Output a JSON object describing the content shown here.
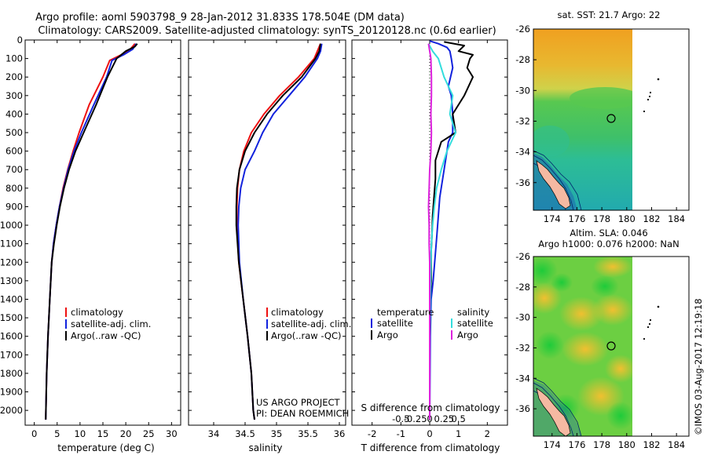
{
  "title": {
    "line1": "Argo profile: aoml 5903798_9 28-Jan-2012 31.833S 178.504E (DM data)",
    "line2": "Climatology: CARS2009. Satellite-adjusted climatology: synTS_20120128.nc (0.6d earlier)"
  },
  "credit": {
    "line1": "US ARGO PROJECT",
    "line2": "PI: DEAN ROEMMICH"
  },
  "stamp": "©IMOS 03-Aug-2017 12:19:18",
  "colors": {
    "climatology": "#ee1111",
    "satellite": "#1122dd",
    "argo": "#000000",
    "sal_satellite": "#33dddd",
    "sal_argo": "#dd22dd"
  },
  "legend_ts": [
    "climatology",
    "satellite-adj. clim.",
    "Argo(..raw -QC)"
  ],
  "legend_diff": {
    "temperature_head": "temperature",
    "salinity_head": "salinity",
    "t_items": [
      "satellite",
      "Argo"
    ],
    "s_items": [
      "satellite",
      "Argo"
    ]
  },
  "map_titles": {
    "sst": "sat. SST: 21.7 Argo: 22",
    "sla1": "Altim. SLA: 0.046",
    "sla2": "Argo h1000: 0.076 h2000: NaN"
  },
  "chart_data": [
    {
      "type": "line",
      "name": "temperature-profile",
      "xlabel": "temperature (deg C)",
      "xlim": [
        -2,
        32
      ],
      "ylim": [
        2080,
        0
      ],
      "xticks": [
        0,
        5,
        10,
        15,
        20,
        25,
        30
      ],
      "yticks": [
        0,
        100,
        200,
        300,
        400,
        500,
        600,
        700,
        800,
        900,
        1000,
        1100,
        1200,
        1300,
        1400,
        1500,
        1600,
        1700,
        1800,
        1900,
        2000
      ],
      "series": [
        {
          "name": "climatology",
          "color": "#ee1111",
          "points": [
            [
              22,
              20
            ],
            [
              21,
              50
            ],
            [
              19,
              80
            ],
            [
              16.5,
              110
            ],
            [
              15,
              200
            ],
            [
              12,
              350
            ],
            [
              9.8,
              500
            ],
            [
              8.5,
              600
            ],
            [
              7.3,
              700
            ],
            [
              6.3,
              800
            ],
            [
              5.5,
              900
            ],
            [
              4.8,
              1000
            ],
            [
              4.2,
              1100
            ],
            [
              3.8,
              1200
            ],
            [
              3.4,
              1400
            ],
            [
              3,
              1600
            ],
            [
              2.7,
              1800
            ],
            [
              2.5,
              2050
            ]
          ]
        },
        {
          "name": "satellite-adj. clim.",
          "color": "#1122dd",
          "points": [
            [
              22.3,
              20
            ],
            [
              21.5,
              50
            ],
            [
              19.5,
              80
            ],
            [
              17,
              110
            ],
            [
              15.8,
              200
            ],
            [
              13,
              350
            ],
            [
              10.3,
              500
            ],
            [
              8.7,
              600
            ],
            [
              7.4,
              700
            ],
            [
              6.4,
              800
            ],
            [
              5.5,
              900
            ],
            [
              4.8,
              1000
            ],
            [
              4.2,
              1100
            ],
            [
              3.8,
              1200
            ],
            [
              3.4,
              1400
            ],
            [
              3,
              1600
            ],
            [
              2.7,
              1800
            ],
            [
              2.5,
              2050
            ]
          ]
        },
        {
          "name": "Argo(..raw -QC)",
          "color": "#000000",
          "points": [
            [
              22.5,
              20
            ],
            [
              22,
              35
            ],
            [
              20,
              60
            ],
            [
              18,
              100
            ],
            [
              17,
              150
            ],
            [
              16,
              200
            ],
            [
              13.5,
              350
            ],
            [
              10.8,
              500
            ],
            [
              9,
              600
            ],
            [
              7.6,
              700
            ],
            [
              6.5,
              800
            ],
            [
              5.6,
              900
            ],
            [
              4.9,
              1000
            ],
            [
              4.3,
              1100
            ],
            [
              3.8,
              1200
            ],
            [
              3.4,
              1400
            ],
            [
              3,
              1600
            ],
            [
              2.7,
              1800
            ],
            [
              2.5,
              2050
            ]
          ]
        }
      ]
    },
    {
      "type": "line",
      "name": "salinity-profile",
      "xlabel": "salinity",
      "xlim": [
        33.6,
        36.1
      ],
      "ylim": [
        2080,
        0
      ],
      "xticks": [
        34,
        34.5,
        35,
        35.5,
        36
      ],
      "series": [
        {
          "name": "climatology",
          "color": "#ee1111",
          "points": [
            [
              35.7,
              20
            ],
            [
              35.65,
              60
            ],
            [
              35.6,
              100
            ],
            [
              35.35,
              200
            ],
            [
              35.05,
              300
            ],
            [
              34.8,
              400
            ],
            [
              34.6,
              500
            ],
            [
              34.48,
              600
            ],
            [
              34.41,
              700
            ],
            [
              34.38,
              800
            ],
            [
              34.37,
              900
            ],
            [
              34.37,
              1000
            ],
            [
              34.4,
              1200
            ],
            [
              34.47,
              1400
            ],
            [
              34.54,
              1600
            ],
            [
              34.6,
              1800
            ],
            [
              34.63,
              2000
            ],
            [
              34.65,
              2050
            ]
          ]
        },
        {
          "name": "satellite-adj. clim.",
          "color": "#1122dd",
          "points": [
            [
              35.72,
              20
            ],
            [
              35.7,
              60
            ],
            [
              35.65,
              100
            ],
            [
              35.45,
              200
            ],
            [
              35.2,
              300
            ],
            [
              34.95,
              400
            ],
            [
              34.78,
              500
            ],
            [
              34.65,
              600
            ],
            [
              34.5,
              700
            ],
            [
              34.43,
              800
            ],
            [
              34.4,
              900
            ],
            [
              34.39,
              1000
            ],
            [
              34.41,
              1200
            ],
            [
              34.47,
              1400
            ],
            [
              34.54,
              1600
            ],
            [
              34.6,
              1800
            ],
            [
              34.63,
              2000
            ],
            [
              34.65,
              2050
            ]
          ]
        },
        {
          "name": "Argo(..raw -QC)",
          "color": "#000000",
          "points": [
            [
              35.7,
              20
            ],
            [
              35.68,
              60
            ],
            [
              35.62,
              100
            ],
            [
              35.4,
              200
            ],
            [
              35.1,
              300
            ],
            [
              34.85,
              400
            ],
            [
              34.65,
              500
            ],
            [
              34.5,
              600
            ],
            [
              34.41,
              700
            ],
            [
              34.37,
              800
            ],
            [
              34.36,
              900
            ],
            [
              34.36,
              1000
            ],
            [
              34.4,
              1200
            ],
            [
              34.47,
              1400
            ],
            [
              34.54,
              1600
            ],
            [
              34.6,
              1800
            ],
            [
              34.63,
              2000
            ],
            [
              34.65,
              2050
            ]
          ]
        }
      ]
    },
    {
      "type": "line",
      "name": "difference-profile",
      "xlabel": "T difference from climatology",
      "xlabel2": "S difference from climatology",
      "xlim": [
        -2.7,
        2.7
      ],
      "ylim": [
        2080,
        0
      ],
      "xticks": [
        -2,
        -1,
        0,
        1,
        2
      ],
      "xtick_labels": [
        "-2",
        "-1",
        "0",
        "1",
        "2"
      ],
      "xticks2": [
        -0.5,
        -0.25,
        0,
        0.25,
        0.5
      ],
      "xtick2_labels": [
        "-0.5",
        "-0.25",
        "0",
        "0.25",
        "0.5"
      ],
      "series": [
        {
          "name": "T satellite",
          "color": "#1122dd",
          "points": [
            [
              0,
              5
            ],
            [
              0.3,
              20
            ],
            [
              0.6,
              40
            ],
            [
              0.7,
              60
            ],
            [
              0.75,
              100
            ],
            [
              0.8,
              150
            ],
            [
              0.65,
              250
            ],
            [
              0.75,
              300
            ],
            [
              0.8,
              400
            ],
            [
              0.8,
              500
            ],
            [
              0.65,
              550
            ],
            [
              0.55,
              650
            ],
            [
              0.45,
              750
            ],
            [
              0.35,
              850
            ],
            [
              0.3,
              950
            ],
            [
              0.25,
              1050
            ],
            [
              0.2,
              1150
            ],
            [
              0.12,
              1300
            ],
            [
              0.05,
              1400
            ],
            [
              0.02,
              1600
            ],
            [
              0,
              2050
            ]
          ]
        },
        {
          "name": "T Argo",
          "color": "#000000",
          "points": [
            [
              0.5,
              10
            ],
            [
              1.2,
              30
            ],
            [
              1.0,
              60
            ],
            [
              1.5,
              80
            ],
            [
              1.4,
              100
            ],
            [
              1.3,
              150
            ],
            [
              1.5,
              200
            ],
            [
              1.2,
              300
            ],
            [
              0.8,
              400
            ],
            [
              0.9,
              500
            ],
            [
              0.4,
              550
            ],
            [
              0.2,
              650
            ],
            [
              0.2,
              750
            ],
            [
              0.15,
              850
            ],
            [
              0.1,
              950
            ],
            [
              0.08,
              1050
            ],
            [
              0.05,
              1150
            ],
            [
              0.05,
              1300
            ],
            [
              0.02,
              1400
            ],
            [
              0,
              1600
            ],
            [
              0,
              2050
            ]
          ]
        },
        {
          "name": "S satellite",
          "color": "#33dddd",
          "points": [
            [
              -0.02,
              20
            ],
            [
              0.05,
              60
            ],
            [
              0.15,
              100
            ],
            [
              0.25,
              200
            ],
            [
              0.4,
              300
            ],
            [
              0.35,
              400
            ],
            [
              0.45,
              500
            ],
            [
              0.3,
              600
            ],
            [
              0.2,
              700
            ],
            [
              0.12,
              800
            ],
            [
              0.08,
              900
            ],
            [
              0.05,
              1000
            ],
            [
              0.03,
              1100
            ],
            [
              0.02,
              1200
            ],
            [
              0.01,
              1400
            ],
            [
              0,
              1600
            ],
            [
              0,
              2050
            ]
          ]
        },
        {
          "name": "S Argo",
          "color": "#dd22dd",
          "points": [
            [
              -0.02,
              20
            ],
            [
              0,
              60
            ],
            [
              0.02,
              100
            ],
            [
              0.03,
              200
            ],
            [
              0.03,
              300
            ],
            [
              0.02,
              400
            ],
            [
              0.03,
              500
            ],
            [
              0.02,
              600
            ],
            [
              0,
              700
            ],
            [
              -0.01,
              800
            ],
            [
              -0.02,
              900
            ],
            [
              -0.01,
              1000
            ],
            [
              -0.01,
              1100
            ],
            [
              0,
              1200
            ],
            [
              0,
              1400
            ],
            [
              0,
              1600
            ],
            [
              0,
              2050
            ]
          ]
        }
      ]
    },
    {
      "type": "heatmap",
      "name": "sst-map",
      "title": "sat. SST: 21.7 Argo: 22",
      "xlim": [
        172.5,
        185
      ],
      "ylim": [
        -37.8,
        -26
      ],
      "xticks": [
        174,
        176,
        178,
        180,
        182,
        184
      ],
      "yticks": [
        -26,
        -28,
        -30,
        -32,
        -34,
        -36
      ],
      "argo_position": [
        178.504,
        -31.833
      ]
    },
    {
      "type": "heatmap",
      "name": "sla-map",
      "title": "Altim. SLA: 0.046",
      "xlim": [
        172.5,
        185
      ],
      "ylim": [
        -37.8,
        -26
      ],
      "xticks": [
        174,
        176,
        178,
        180,
        182,
        184
      ],
      "yticks": [
        -26,
        -28,
        -30,
        -32,
        -34,
        -36
      ],
      "argo_position": [
        178.504,
        -31.833
      ]
    }
  ]
}
